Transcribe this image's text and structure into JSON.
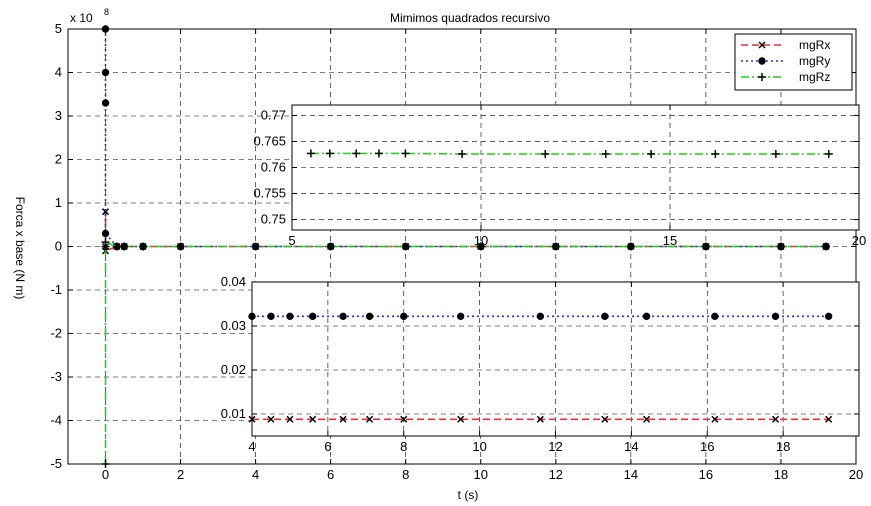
{
  "chart_data": [
    {
      "type": "line",
      "title": "Mimimos quadrados recursivo",
      "xlabel": "t (s)",
      "ylabel": "Forca x base (N m)",
      "y_exponent": "x 10",
      "y_exponent_power": "8",
      "xlim": [
        -1,
        20
      ],
      "ylim": [
        -5,
        5
      ],
      "xticks": [
        "0",
        "2",
        "4",
        "6",
        "8",
        "10",
        "12",
        "14",
        "16",
        "18",
        "20"
      ],
      "yticks": [
        "5",
        "4",
        "3",
        "2",
        "1",
        "0",
        "-1",
        "-2",
        "-3",
        "-4",
        "-5"
      ],
      "grid": true,
      "legend_position": "top-right",
      "series": [
        {
          "name": "mgRx",
          "color": "#e8303a",
          "style": "dashed",
          "marker": "x",
          "x": [
            0.0,
            0.0,
            0.0,
            0.3,
            0.5,
            1,
            2,
            4,
            6,
            8,
            10,
            12,
            14,
            16,
            18,
            19.2
          ],
          "y": [
            0.0,
            0.8,
            -0.1,
            0.0,
            0.0,
            0.0,
            0.0,
            0.0,
            0.0,
            0.0,
            0.0,
            0.0,
            0.0,
            0.0,
            0.0,
            0.0
          ]
        },
        {
          "name": "mgRy",
          "color": "#2236d8",
          "style": "dotted",
          "marker": "o",
          "x": [
            0.0,
            0.0,
            0.0,
            0.0,
            0.3,
            0.5,
            1,
            2,
            4,
            6,
            8,
            10,
            12,
            14,
            16,
            18,
            19.2
          ],
          "y": [
            5.0,
            4.0,
            3.3,
            0.3,
            0.0,
            0.0,
            0.0,
            0.0,
            0.0,
            0.0,
            0.0,
            0.0,
            0.0,
            0.0,
            0.0,
            0.0,
            0.0
          ]
        },
        {
          "name": "mgRz",
          "color": "#22d21e",
          "style": "dashdot",
          "marker": "+",
          "x": [
            0.0,
            0.0,
            0.0,
            0.3,
            0.5,
            1,
            2,
            4,
            6,
            8,
            10,
            12,
            14,
            16,
            18,
            19.2
          ],
          "y": [
            -5.0,
            0.0,
            0.1,
            0.0,
            0.0,
            0.0,
            0.0,
            0.0,
            0.0,
            0.0,
            0.0,
            0.0,
            0.0,
            0.0,
            0.0,
            0.0
          ]
        }
      ]
    },
    {
      "type": "line",
      "title": "",
      "xlim": [
        5,
        20
      ],
      "ylim": [
        0.748,
        0.772
      ],
      "xticks": [
        "5",
        "10",
        "15",
        "20"
      ],
      "yticks": [
        "0.77",
        "0.765",
        "0.76",
        "0.755",
        "0.75"
      ],
      "grid": true,
      "series": [
        {
          "name": "mgRz",
          "color": "#22d21e",
          "style": "dashdot",
          "marker": "+",
          "x": [
            5.5,
            6.0,
            6.7,
            7.3,
            8.0,
            9.5,
            11.7,
            13.3,
            14.5,
            16.2,
            17.8,
            19.2
          ],
          "y": [
            0.7627,
            0.7627,
            0.7627,
            0.7627,
            0.7627,
            0.7626,
            0.7626,
            0.7626,
            0.7626,
            0.7626,
            0.7626,
            0.7626
          ]
        }
      ]
    },
    {
      "type": "line",
      "title": "",
      "xlim": [
        4,
        20
      ],
      "ylim": [
        0.005,
        0.04
      ],
      "xticks": [
        "4",
        "6",
        "8",
        "10",
        "12",
        "14",
        "16",
        "18"
      ],
      "yticks": [
        "0.04",
        "0.03",
        "0.02",
        "0.01"
      ],
      "grid": true,
      "series": [
        {
          "name": "mgRx",
          "color": "#e8303a",
          "style": "dashed",
          "marker": "x",
          "x": [
            4.0,
            4.5,
            5.0,
            5.6,
            6.4,
            7.1,
            8.0,
            9.5,
            11.6,
            13.3,
            14.4,
            16.2,
            17.8,
            19.2
          ],
          "y": [
            0.0088,
            0.0088,
            0.0088,
            0.0088,
            0.0088,
            0.0088,
            0.0088,
            0.0088,
            0.0088,
            0.0088,
            0.0088,
            0.0088,
            0.0088,
            0.0088
          ]
        },
        {
          "name": "mgRy",
          "color": "#2236d8",
          "style": "dotted",
          "marker": "o",
          "x": [
            4.0,
            4.5,
            5.0,
            5.6,
            6.4,
            7.1,
            8.0,
            9.5,
            11.6,
            13.3,
            14.4,
            16.2,
            17.8,
            19.2
          ],
          "y": [
            0.0322,
            0.0322,
            0.0322,
            0.0322,
            0.0322,
            0.0322,
            0.0322,
            0.0322,
            0.0322,
            0.0322,
            0.0322,
            0.0322,
            0.0322,
            0.0322
          ]
        }
      ]
    }
  ]
}
